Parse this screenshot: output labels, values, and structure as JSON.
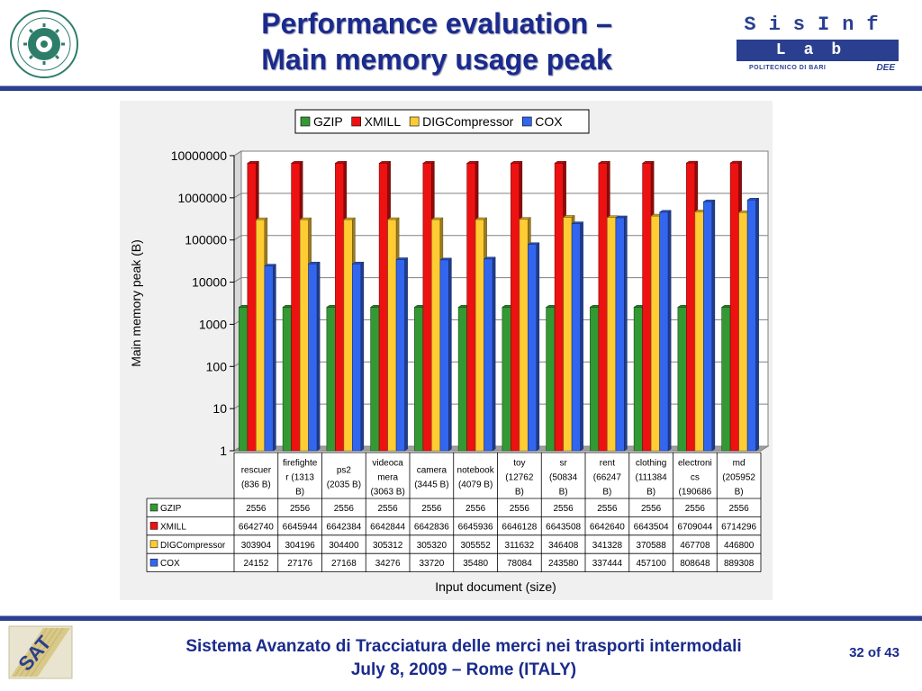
{
  "header": {
    "title_line1": "Performance evaluation –",
    "title_line2": "Main memory usage peak",
    "lab_logo_top": "SisInf",
    "lab_logo_bar": "Lab",
    "lab_logo_institution": "POLITECNICO DI BARI",
    "lab_logo_dept": "DEE"
  },
  "footer": {
    "line1": "Sistema Avanzato di Tracciatura delle merci nei trasporti intermodali",
    "line2": "July 8, 2009 – Rome (ITALY)",
    "page": "32 of 43"
  },
  "colors": {
    "accent": "#2a3f8f",
    "title": "#1a2b8c"
  },
  "chart_data": {
    "type": "bar",
    "scale": "log",
    "ylim": [
      1,
      10000000
    ],
    "ylabel": "Main memory peak (B)",
    "xlabel": "Input document (size)",
    "legend_position": "top",
    "grid": true,
    "yticks": [
      "10000000",
      "1000000",
      "100000",
      "10000",
      "1000",
      "100",
      "10",
      "1"
    ],
    "categories": [
      [
        "rescuer",
        "(836 B)"
      ],
      [
        "firefighte",
        "r (1313",
        "B)"
      ],
      [
        "ps2",
        "(2035 B)"
      ],
      [
        "videoca",
        "mera",
        "(3063 B)"
      ],
      [
        "camera",
        "(3445 B)"
      ],
      [
        "notebook",
        "(4079 B)"
      ],
      [
        "toy",
        "(12762",
        "B)"
      ],
      [
        "sr",
        "(50834",
        "B)"
      ],
      [
        "rent",
        "(66247",
        "B)"
      ],
      [
        "clothing",
        "(111384",
        "B)"
      ],
      [
        "electroni",
        "cs",
        "(190686"
      ],
      [
        "md",
        "(205952",
        "B)"
      ]
    ],
    "series": [
      {
        "name": "GZIP",
        "color": "#339933",
        "values": [
          2556,
          2556,
          2556,
          2556,
          2556,
          2556,
          2556,
          2556,
          2556,
          2556,
          2556,
          2556
        ]
      },
      {
        "name": "XMILL",
        "color": "#ee1111",
        "values": [
          6642740,
          6645944,
          6642384,
          6642844,
          6642836,
          6645936,
          6646128,
          6643508,
          6642640,
          6643504,
          6709044,
          6714296
        ]
      },
      {
        "name": "DIGCompressor",
        "color": "#ffcc33",
        "values": [
          303904,
          304196,
          304400,
          305312,
          305320,
          305552,
          311632,
          346408,
          341328,
          370588,
          467708,
          446800
        ]
      },
      {
        "name": "COX",
        "color": "#3366ee",
        "values": [
          24152,
          27176,
          27168,
          34276,
          33720,
          35480,
          78084,
          243580,
          337444,
          457100,
          808648,
          889308
        ]
      }
    ]
  }
}
